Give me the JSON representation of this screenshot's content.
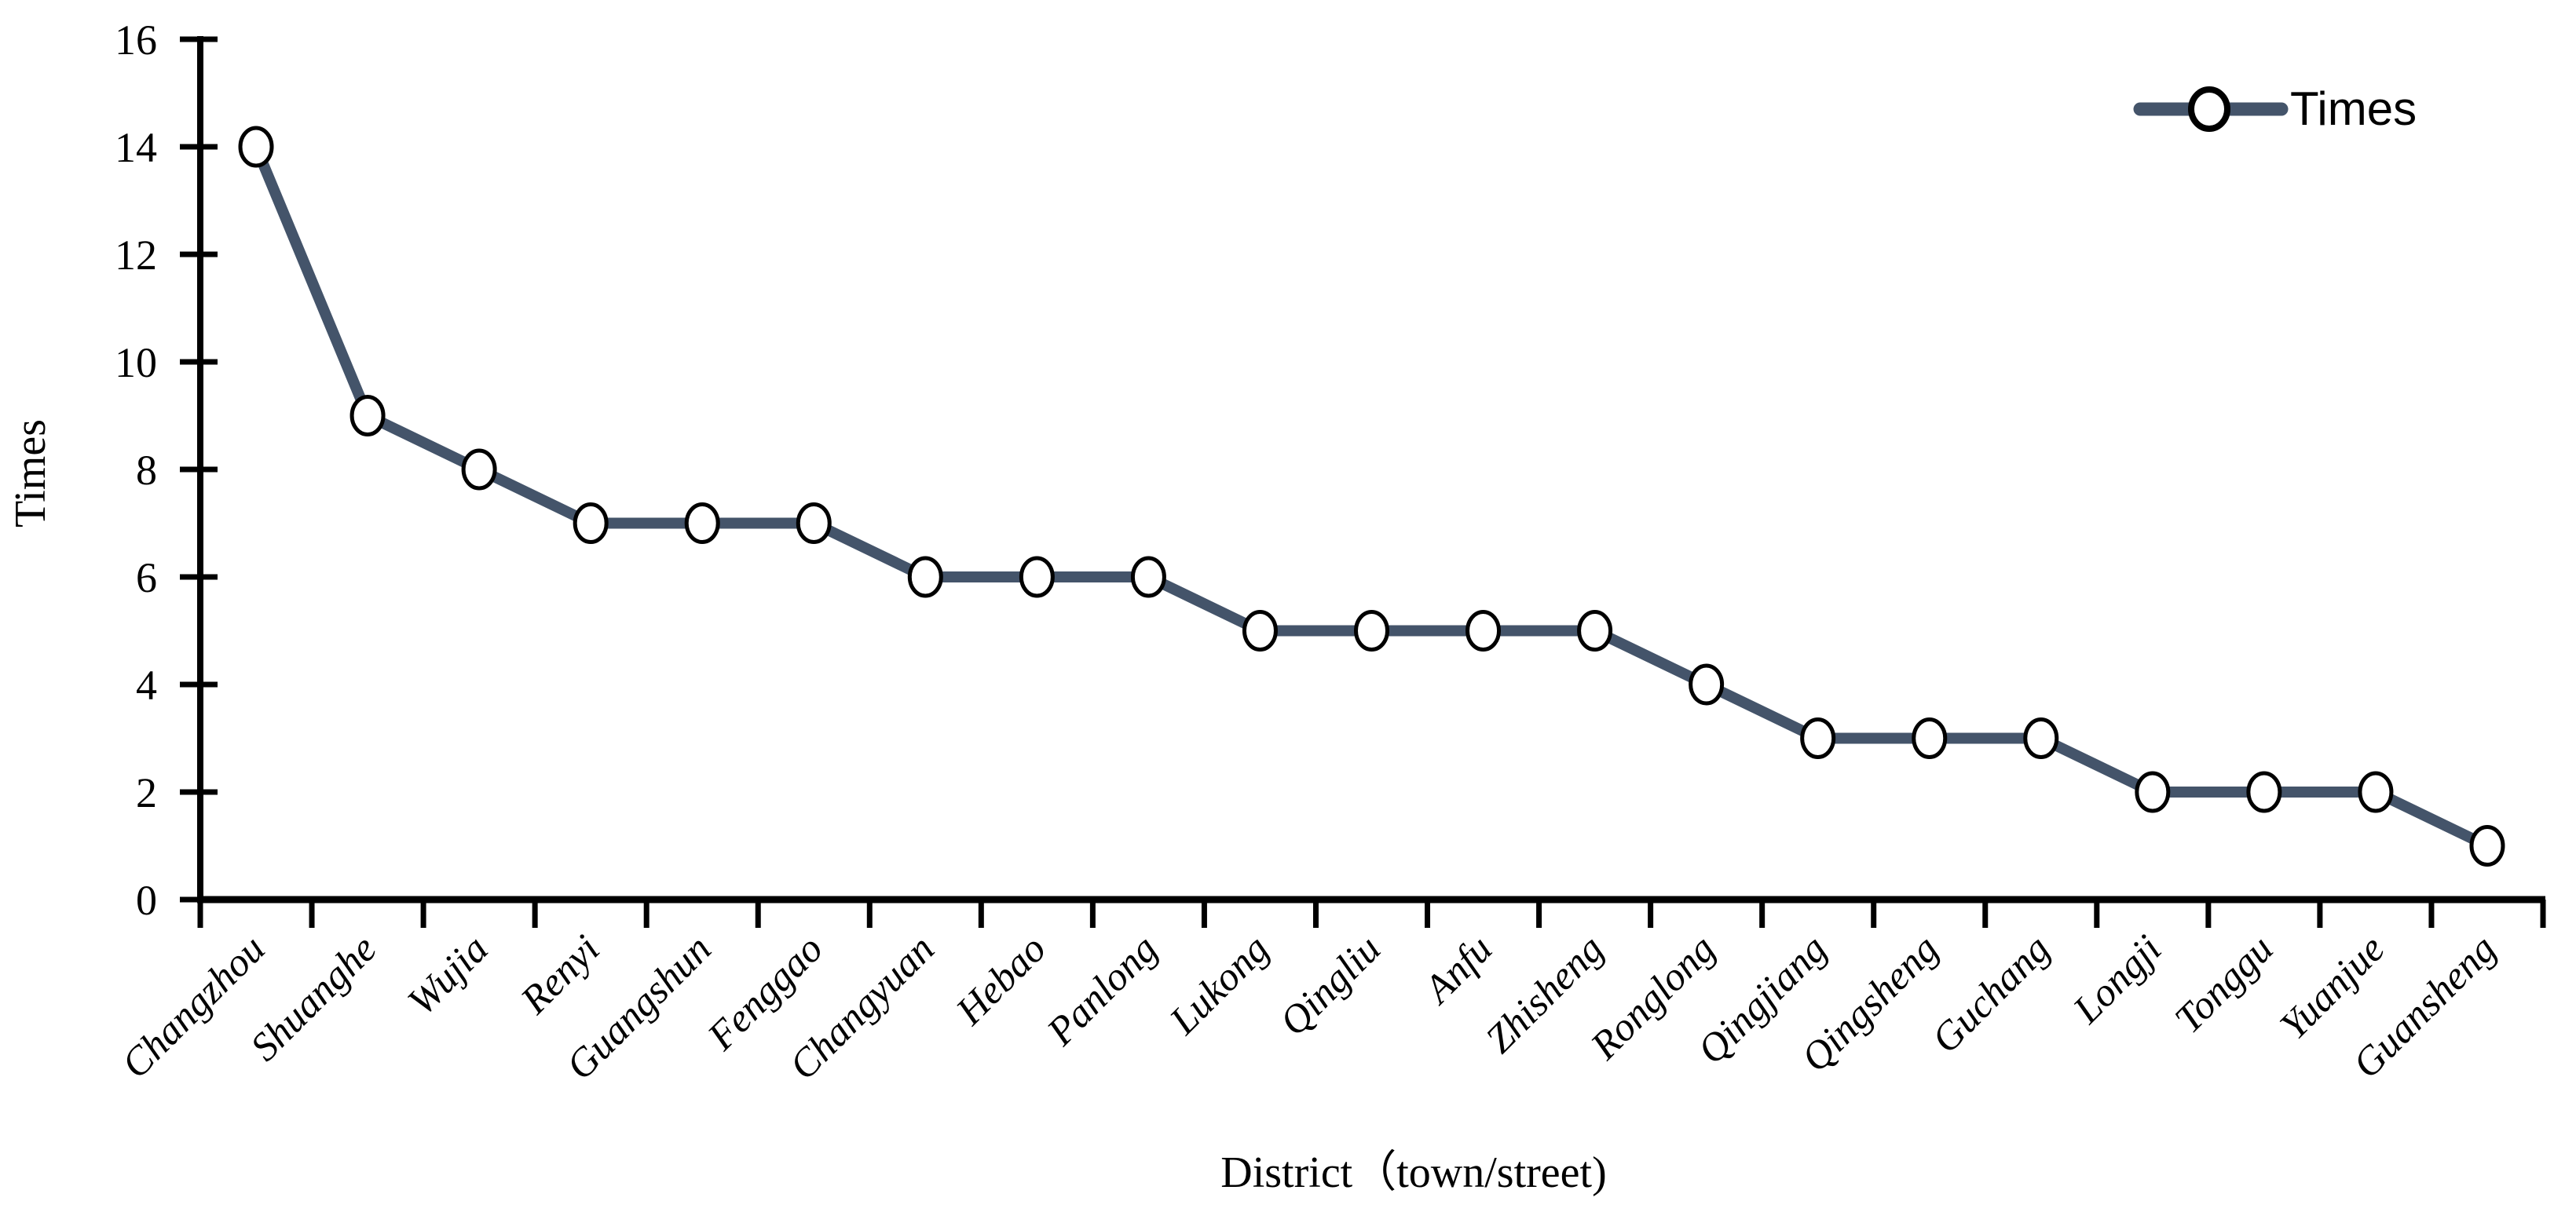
{
  "chart_data": {
    "type": "line",
    "title": "",
    "categories": [
      "Changzhou",
      "Shuanghe",
      "Wujia",
      "Renyi",
      "Guangshun",
      "Fenggao",
      "Changyuan",
      "Hebao",
      "Panlong",
      "Lukong",
      "Qingliu",
      "Anfu",
      "Zhisheng",
      "Ronglong",
      "Qingjiang",
      "Qingsheng",
      "Guchang",
      "Longji",
      "Tonggu",
      "Yuanjue",
      "Guansheng"
    ],
    "series": [
      {
        "name": "Times",
        "values": [
          14,
          9,
          8,
          7,
          7,
          7,
          6,
          6,
          6,
          5,
          5,
          5,
          5,
          4,
          3,
          3,
          3,
          2,
          2,
          2,
          1
        ]
      }
    ],
    "xlabel": "District（town/street)",
    "ylabel": "Times",
    "ylim": [
      0,
      16
    ],
    "ytick_step": 2,
    "yticks": [
      0,
      2,
      4,
      6,
      8,
      10,
      12,
      14,
      16
    ],
    "grid": false,
    "legend": {
      "position": "top-right",
      "entries": [
        "Times"
      ]
    },
    "colors": {
      "line": "#44546A",
      "marker_fill": "#FFFFFF",
      "marker_stroke": "#000000",
      "axis": "#000000",
      "text": "#000000"
    }
  }
}
